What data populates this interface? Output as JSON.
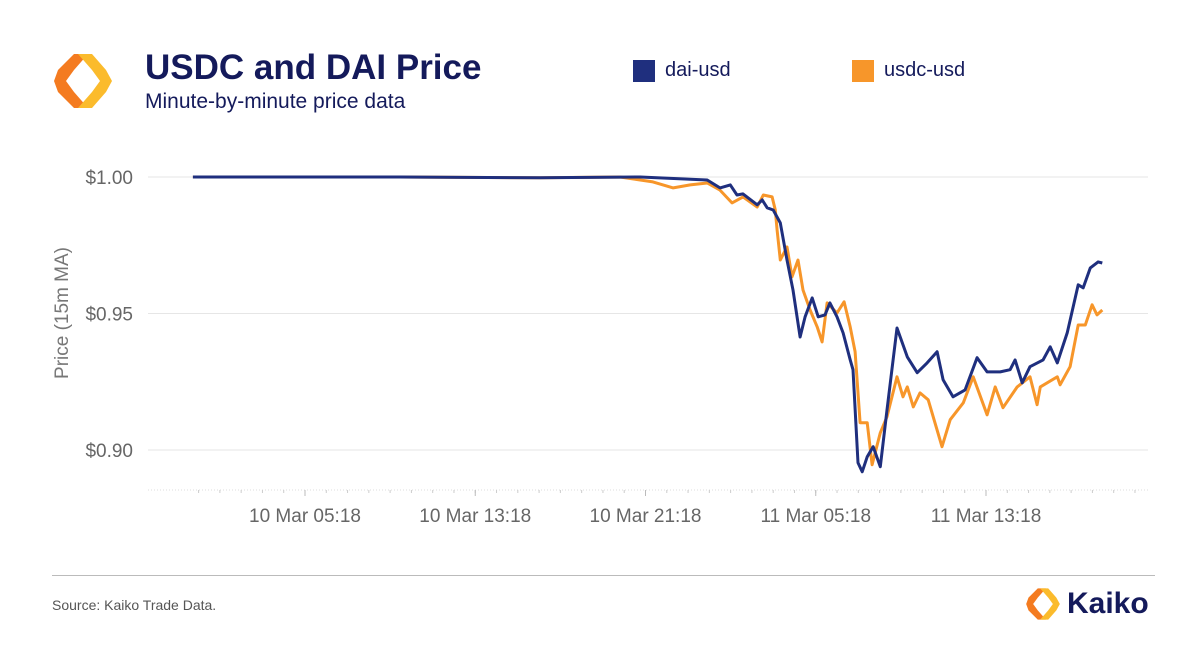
{
  "header": {
    "title": "USDC and DAI Price",
    "subtitle": "Minute-by-minute price data"
  },
  "footer": {
    "source": "Source: Kaiko Trade Data.",
    "brand": "Kaiko"
  },
  "colors": {
    "dai": "#1f2f7e",
    "usdc": "#f7962a",
    "title": "#141a5b",
    "logo_light": "#fbbb2c",
    "logo_dark": "#f47b20"
  },
  "chart_data": {
    "type": "line",
    "title": "USDC and DAI Price",
    "subtitle": "Minute-by-minute price data",
    "xlabel": "",
    "ylabel": "Price (15m MA)",
    "ylim": [
      0.875,
      1.0
    ],
    "yticks": [
      1.0,
      0.95,
      0.9
    ],
    "ytick_labels": [
      "$1.00",
      "$0.95",
      "$0.90"
    ],
    "xticks": [
      "10 Mar 05:18",
      "10 Mar 13:18",
      "10 Mar 21:18",
      "11 Mar 05:18",
      "11 Mar 13:18"
    ],
    "grid": true,
    "legend": "top",
    "series": [
      {
        "name": "dai-usd",
        "color": "#1f2f7e",
        "points": [
          [
            "10 Mar 00:02",
            1.0
          ],
          [
            "10 Mar 09:46",
            1.0
          ],
          [
            "10 Mar 16:21",
            0.9997
          ],
          [
            "10 Mar 21:03",
            1.0
          ],
          [
            "11 Mar 00:12",
            0.9989
          ],
          [
            "11 Mar 00:48",
            0.996
          ],
          [
            "11 Mar 01:17",
            0.9971
          ],
          [
            "11 Mar 01:36",
            0.9934
          ],
          [
            "11 Mar 01:53",
            0.9938
          ],
          [
            "11 Mar 02:33",
            0.9898
          ],
          [
            "11 Mar 02:47",
            0.9916
          ],
          [
            "11 Mar 03:01",
            0.9887
          ],
          [
            "11 Mar 03:18",
            0.9879
          ],
          [
            "11 Mar 03:38",
            0.9832
          ],
          [
            "11 Mar 03:57",
            0.9696
          ],
          [
            "11 Mar 04:14",
            0.9586
          ],
          [
            "11 Mar 04:34",
            0.9414
          ],
          [
            "11 Mar 04:48",
            0.9488
          ],
          [
            "11 Mar 05:08",
            0.9557
          ],
          [
            "11 Mar 05:25",
            0.9488
          ],
          [
            "11 Mar 05:44",
            0.9495
          ],
          [
            "11 Mar 05:58",
            0.9539
          ],
          [
            "11 Mar 06:18",
            0.9488
          ],
          [
            "11 Mar 06:35",
            0.9429
          ],
          [
            "11 Mar 06:55",
            0.933
          ],
          [
            "11 Mar 07:03",
            0.9294
          ],
          [
            "11 Mar 07:17",
            0.8953
          ],
          [
            "11 Mar 07:29",
            0.892
          ],
          [
            "11 Mar 07:43",
            0.8975
          ],
          [
            "11 Mar 08:00",
            0.9012
          ],
          [
            "11 Mar 08:20",
            0.8939
          ],
          [
            "11 Mar 08:39",
            0.9147
          ],
          [
            "11 Mar 09:07",
            0.9447
          ],
          [
            "11 Mar 09:36",
            0.9341
          ],
          [
            "11 Mar 10:04",
            0.9283
          ],
          [
            "11 Mar 10:32",
            0.9319
          ],
          [
            "11 Mar 11:00",
            0.936
          ],
          [
            "11 Mar 11:17",
            0.9257
          ],
          [
            "11 Mar 11:45",
            0.9195
          ],
          [
            "11 Mar 12:19",
            0.922
          ],
          [
            "11 Mar 12:53",
            0.9338
          ],
          [
            "11 Mar 13:21",
            0.9286
          ],
          [
            "11 Mar 13:58",
            0.9286
          ],
          [
            "11 Mar 14:26",
            0.9294
          ],
          [
            "11 Mar 14:40",
            0.933
          ],
          [
            "11 Mar 15:00",
            0.9246
          ],
          [
            "11 Mar 15:22",
            0.9305
          ],
          [
            "11 Mar 15:59",
            0.933
          ],
          [
            "11 Mar 16:19",
            0.9378
          ],
          [
            "11 Mar 16:39",
            0.9319
          ],
          [
            "11 Mar 17:07",
            0.9429
          ],
          [
            "11 Mar 17:38",
            0.9605
          ],
          [
            "11 Mar 17:52",
            0.9594
          ],
          [
            "11 Mar 18:12",
            0.9667
          ],
          [
            "11 Mar 18:34",
            0.9689
          ],
          [
            "11 Mar 18:46",
            0.9685
          ]
        ]
      },
      {
        "name": "usdc-usd",
        "color": "#f7962a",
        "points": [
          [
            "10 Mar 00:02",
            1.0
          ],
          [
            "10 Mar 09:46",
            1.0
          ],
          [
            "10 Mar 16:21",
            0.9997
          ],
          [
            "10 Mar 20:06",
            1.0
          ],
          [
            "10 Mar 21:03",
            0.9989
          ],
          [
            "10 Mar 21:39",
            0.9982
          ],
          [
            "10 Mar 22:36",
            0.996
          ],
          [
            "10 Mar 23:24",
            0.9971
          ],
          [
            "11 Mar 00:12",
            0.9978
          ],
          [
            "11 Mar 00:48",
            0.9952
          ],
          [
            "11 Mar 01:22",
            0.9905
          ],
          [
            "11 Mar 01:53",
            0.9927
          ],
          [
            "11 Mar 02:33",
            0.989
          ],
          [
            "11 Mar 02:50",
            0.9934
          ],
          [
            "11 Mar 03:15",
            0.9927
          ],
          [
            "11 Mar 03:24",
            0.9879
          ],
          [
            "11 Mar 03:29",
            0.9806
          ],
          [
            "11 Mar 03:38",
            0.9696
          ],
          [
            "11 Mar 03:57",
            0.9744
          ],
          [
            "11 Mar 04:11",
            0.9634
          ],
          [
            "11 Mar 04:28",
            0.9696
          ],
          [
            "11 Mar 04:42",
            0.9586
          ],
          [
            "11 Mar 05:02",
            0.9513
          ],
          [
            "11 Mar 05:22",
            0.9451
          ],
          [
            "11 Mar 05:36",
            0.9396
          ],
          [
            "11 Mar 05:50",
            0.9539
          ],
          [
            "11 Mar 06:18",
            0.9502
          ],
          [
            "11 Mar 06:38",
            0.9543
          ],
          [
            "11 Mar 06:55",
            0.9451
          ],
          [
            "11 Mar 07:09",
            0.936
          ],
          [
            "11 Mar 07:23",
            0.91
          ],
          [
            "11 Mar 07:43",
            0.91
          ],
          [
            "11 Mar 07:57",
            0.8946
          ],
          [
            "11 Mar 08:20",
            0.9063
          ],
          [
            "11 Mar 08:39",
            0.9122
          ],
          [
            "11 Mar 09:07",
            0.9268
          ],
          [
            "11 Mar 09:24",
            0.9195
          ],
          [
            "11 Mar 09:36",
            0.9231
          ],
          [
            "11 Mar 09:53",
            0.9158
          ],
          [
            "11 Mar 10:12",
            0.9209
          ],
          [
            "11 Mar 10:35",
            0.9184
          ],
          [
            "11 Mar 11:14",
            0.9012
          ],
          [
            "11 Mar 11:37",
            0.9111
          ],
          [
            "11 Mar 12:14",
            0.9173
          ],
          [
            "11 Mar 12:42",
            0.9268
          ],
          [
            "11 Mar 13:21",
            0.9129
          ],
          [
            "11 Mar 13:44",
            0.9231
          ],
          [
            "11 Mar 14:06",
            0.9155
          ],
          [
            "11 Mar 14:46",
            0.9231
          ],
          [
            "11 Mar 15:22",
            0.9268
          ],
          [
            "11 Mar 15:42",
            0.9166
          ],
          [
            "11 Mar 15:51",
            0.9231
          ],
          [
            "11 Mar 16:39",
            0.9268
          ],
          [
            "11 Mar 16:47",
            0.9239
          ],
          [
            "11 Mar 17:15",
            0.9305
          ],
          [
            "11 Mar 17:38",
            0.9458
          ],
          [
            "11 Mar 17:58",
            0.9458
          ],
          [
            "11 Mar 18:17",
            0.9532
          ],
          [
            "11 Mar 18:31",
            0.9495
          ],
          [
            "11 Mar 18:46",
            0.9513
          ]
        ]
      }
    ]
  }
}
